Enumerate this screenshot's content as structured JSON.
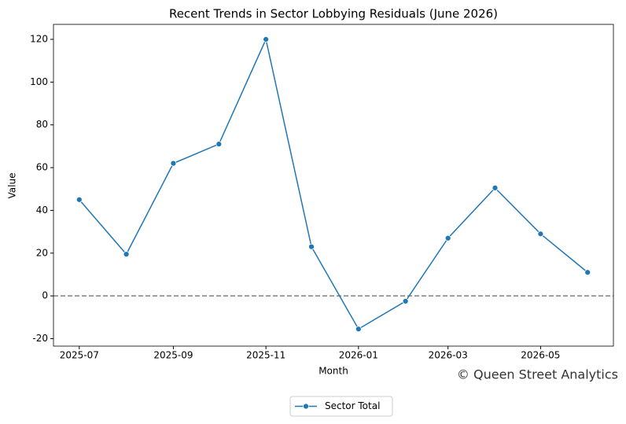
{
  "chart_data": {
    "type": "line",
    "title": "Recent Trends in Sector Lobbying Residuals (June 2026)",
    "xlabel": "Month",
    "ylabel": "Value",
    "x": [
      "2025-07",
      "2025-08",
      "2025-09",
      "2025-10",
      "2025-11",
      "2025-12",
      "2026-01",
      "2026-02",
      "2026-03",
      "2026-04",
      "2026-05",
      "2026-06"
    ],
    "series": [
      {
        "name": "Sector Total",
        "color": "#1f77b4",
        "values": [
          45,
          19.5,
          62,
          71,
          120,
          23,
          -15.5,
          -2.5,
          27,
          50.5,
          29,
          11
        ]
      }
    ],
    "xticks": [
      "2025-07",
      "2025-09",
      "2025-11",
      "2026-01",
      "2026-03",
      "2026-05"
    ],
    "ylim": [
      -23.5,
      127
    ],
    "yticks": [
      -20,
      0,
      20,
      40,
      60,
      80,
      100,
      120
    ],
    "hline": {
      "value": 0,
      "color": "#808080",
      "style": "dashed"
    },
    "watermark": "© Queen Street Analytics",
    "legend": "bottom"
  }
}
